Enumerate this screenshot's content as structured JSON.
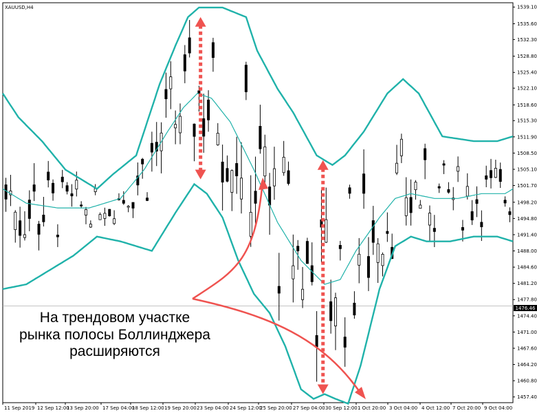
{
  "chart_data": {
    "type": "candlestick",
    "title": "XAUUSD,H4",
    "current_price": "1476.46",
    "ylim": [
      1456.2,
      1540.0
    ],
    "y_ticks": [
      "1539.10",
      "1535.60",
      "1532.30",
      "1528.80",
      "1525.40",
      "1522.10",
      "1518.60",
      "1515.30",
      "1511.90",
      "1508.50",
      "1505.10",
      "1501.70",
      "1498.20",
      "1494.80",
      "1491.40",
      "1488.00",
      "1484.60",
      "1481.20",
      "1477.80",
      "1474.40",
      "1471.00",
      "1467.60",
      "1464.20",
      "1460.80",
      "1457.40"
    ],
    "x_ticks": [
      "11 Sep 2019",
      "12 Sep 12:00",
      "13 Sep 20:00",
      "17 Sep 04:00",
      "18 Sep 12:00",
      "19 Sep 20:00",
      "23 Sep 04:00",
      "24 Sep 12:00",
      "25 Sep 20:00",
      "27 Sep 04:00",
      "30 Sep 12:00",
      "1 Oct 20:00",
      "3 Oct 04:00",
      "4 Oct 12:00",
      "7 Oct 20:00",
      "9 Oct 04:00"
    ],
    "colors": {
      "band": "#20b2aa",
      "candle": "#000000",
      "arrow": "#ef5350",
      "badge": "#000000"
    },
    "bollinger_upper": [
      [
        0,
        1521
      ],
      [
        10,
        1516
      ],
      [
        25,
        1511
      ],
      [
        40,
        1505
      ],
      [
        50,
        1503
      ],
      [
        60,
        1501
      ],
      [
        70,
        1504
      ],
      [
        85,
        1508
      ],
      [
        100,
        1523
      ],
      [
        110,
        1531
      ],
      [
        118,
        1537
      ],
      [
        125,
        1539
      ],
      [
        140,
        1539
      ],
      [
        155,
        1537
      ],
      [
        162,
        1530
      ],
      [
        175,
        1522
      ],
      [
        185,
        1517
      ],
      [
        200,
        1508
      ],
      [
        210,
        1506
      ],
      [
        218,
        1508
      ],
      [
        230,
        1513
      ],
      [
        245,
        1521
      ],
      [
        255,
        1524
      ],
      [
        265,
        1521
      ],
      [
        280,
        1512
      ],
      [
        300,
        1511
      ],
      [
        315,
        1511
      ],
      [
        325,
        1512
      ]
    ],
    "bollinger_middle": [
      [
        0,
        1501
      ],
      [
        15,
        1498
      ],
      [
        35,
        1497
      ],
      [
        55,
        1497
      ],
      [
        75,
        1499
      ],
      [
        90,
        1505
      ],
      [
        105,
        1513
      ],
      [
        115,
        1518
      ],
      [
        124,
        1521
      ],
      [
        133,
        1520
      ],
      [
        145,
        1515
      ],
      [
        160,
        1505
      ],
      [
        175,
        1494
      ],
      [
        190,
        1486
      ],
      [
        205,
        1481
      ],
      [
        215,
        1482
      ],
      [
        225,
        1488
      ],
      [
        240,
        1495
      ],
      [
        250,
        1499
      ],
      [
        260,
        1500
      ],
      [
        275,
        1499
      ],
      [
        290,
        1499
      ],
      [
        305,
        1500
      ],
      [
        320,
        1500
      ],
      [
        325,
        1501
      ]
    ],
    "bollinger_lower": [
      [
        0,
        1480
      ],
      [
        15,
        1481
      ],
      [
        30,
        1484
      ],
      [
        45,
        1487
      ],
      [
        60,
        1491
      ],
      [
        75,
        1490
      ],
      [
        95,
        1488
      ],
      [
        110,
        1496
      ],
      [
        122,
        1502
      ],
      [
        130,
        1500
      ],
      [
        140,
        1495
      ],
      [
        150,
        1486
      ],
      [
        160,
        1479
      ],
      [
        170,
        1475
      ],
      [
        180,
        1468
      ],
      [
        190,
        1459
      ],
      [
        198,
        1457
      ],
      [
        205,
        1458
      ],
      [
        212,
        1457
      ],
      [
        220,
        1456
      ],
      [
        228,
        1464
      ],
      [
        240,
        1480
      ],
      [
        250,
        1489
      ],
      [
        260,
        1491
      ],
      [
        270,
        1490
      ],
      [
        285,
        1490
      ],
      [
        300,
        1491
      ],
      [
        315,
        1491
      ],
      [
        325,
        1490
      ]
    ],
    "arrows": [
      {
        "x": 126,
        "y_top": 1537,
        "y_bottom": 1503
      },
      {
        "x": 204,
        "y_top": 1507,
        "y_bottom": 1458
      }
    ],
    "annotation": {
      "lines": [
        "На трендовом участке",
        "рынка полосы Боллинджера",
        "расширяются"
      ]
    }
  }
}
